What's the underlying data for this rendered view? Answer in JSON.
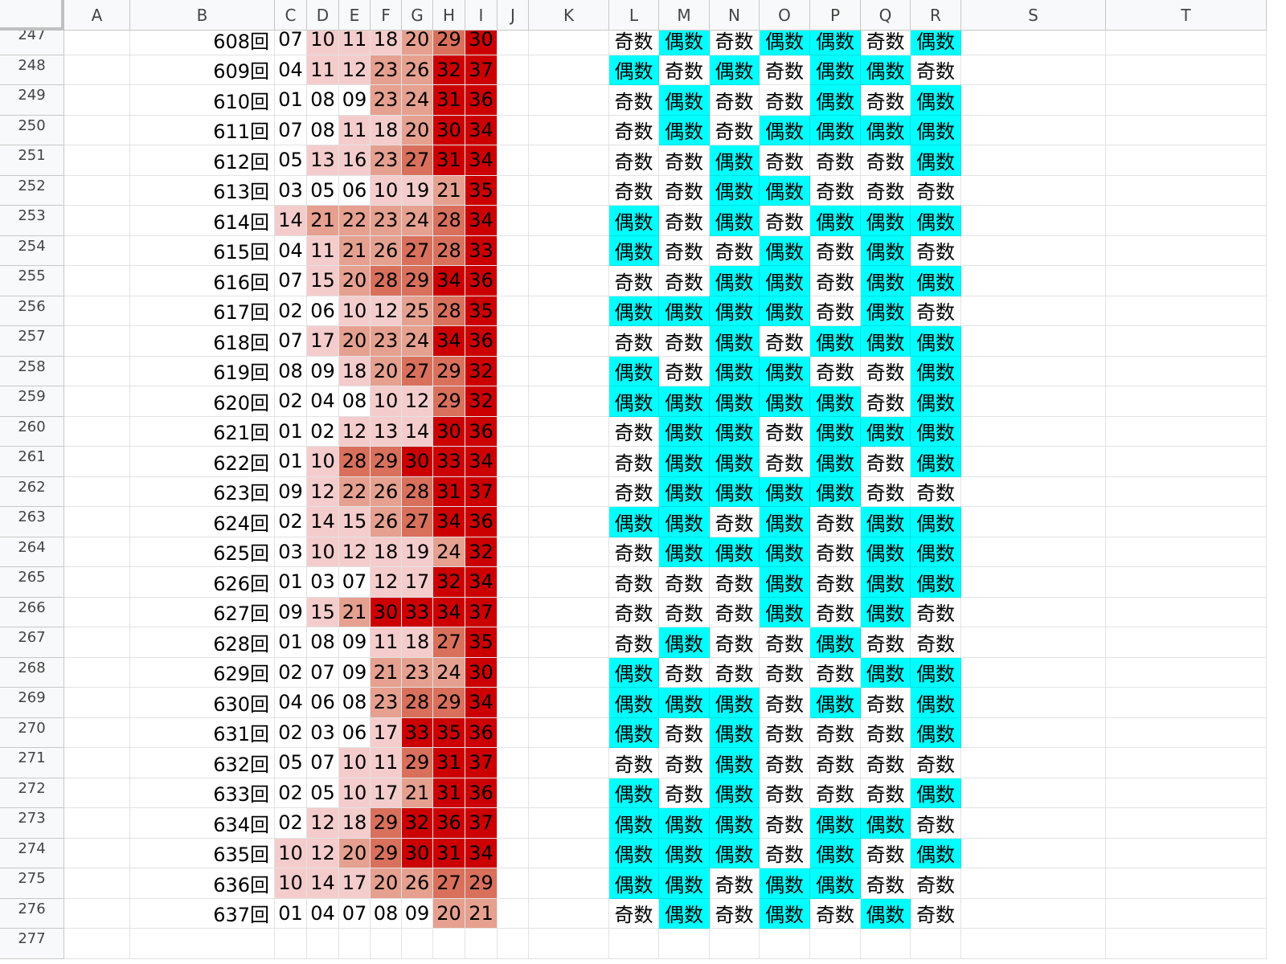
{
  "sheet": {
    "columns": [
      "A",
      "B",
      "C",
      "D",
      "E",
      "F",
      "G",
      "H",
      "I",
      "J",
      "K",
      "L",
      "M",
      "N",
      "O",
      "P",
      "Q",
      "R",
      "S",
      "T"
    ],
    "rows": [
      {
        "row": "247",
        "draw": "608回",
        "nums": [
          "07",
          "10",
          "11",
          "18",
          "20",
          "29",
          "30"
        ],
        "parity": [
          "奇数",
          "偶数",
          "奇数",
          "偶数",
          "偶数",
          "奇数",
          "偶数"
        ]
      },
      {
        "row": "248",
        "draw": "609回",
        "nums": [
          "04",
          "11",
          "12",
          "23",
          "26",
          "32",
          "37"
        ],
        "parity": [
          "偶数",
          "奇数",
          "偶数",
          "奇数",
          "偶数",
          "偶数",
          "奇数"
        ]
      },
      {
        "row": "249",
        "draw": "610回",
        "nums": [
          "01",
          "08",
          "09",
          "23",
          "24",
          "31",
          "36"
        ],
        "parity": [
          "奇数",
          "偶数",
          "奇数",
          "奇数",
          "偶数",
          "奇数",
          "偶数"
        ]
      },
      {
        "row": "250",
        "draw": "611回",
        "nums": [
          "07",
          "08",
          "11",
          "18",
          "20",
          "30",
          "34"
        ],
        "parity": [
          "奇数",
          "偶数",
          "奇数",
          "偶数",
          "偶数",
          "偶数",
          "偶数"
        ]
      },
      {
        "row": "251",
        "draw": "612回",
        "nums": [
          "05",
          "13",
          "16",
          "23",
          "27",
          "31",
          "34"
        ],
        "parity": [
          "奇数",
          "奇数",
          "偶数",
          "奇数",
          "奇数",
          "奇数",
          "偶数"
        ]
      },
      {
        "row": "252",
        "draw": "613回",
        "nums": [
          "03",
          "05",
          "06",
          "10",
          "19",
          "21",
          "35"
        ],
        "parity": [
          "奇数",
          "奇数",
          "偶数",
          "偶数",
          "奇数",
          "奇数",
          "奇数"
        ]
      },
      {
        "row": "253",
        "draw": "614回",
        "nums": [
          "14",
          "21",
          "22",
          "23",
          "24",
          "28",
          "34"
        ],
        "parity": [
          "偶数",
          "奇数",
          "偶数",
          "奇数",
          "偶数",
          "偶数",
          "偶数"
        ]
      },
      {
        "row": "254",
        "draw": "615回",
        "nums": [
          "04",
          "11",
          "21",
          "26",
          "27",
          "28",
          "33"
        ],
        "parity": [
          "偶数",
          "奇数",
          "奇数",
          "偶数",
          "奇数",
          "偶数",
          "奇数"
        ]
      },
      {
        "row": "255",
        "draw": "616回",
        "nums": [
          "07",
          "15",
          "20",
          "28",
          "29",
          "34",
          "36"
        ],
        "parity": [
          "奇数",
          "奇数",
          "偶数",
          "偶数",
          "奇数",
          "偶数",
          "偶数"
        ]
      },
      {
        "row": "256",
        "draw": "617回",
        "nums": [
          "02",
          "06",
          "10",
          "12",
          "25",
          "28",
          "35"
        ],
        "parity": [
          "偶数",
          "偶数",
          "偶数",
          "偶数",
          "奇数",
          "偶数",
          "奇数"
        ]
      },
      {
        "row": "257",
        "draw": "618回",
        "nums": [
          "07",
          "17",
          "20",
          "23",
          "24",
          "34",
          "36"
        ],
        "parity": [
          "奇数",
          "奇数",
          "偶数",
          "奇数",
          "偶数",
          "偶数",
          "偶数"
        ]
      },
      {
        "row": "258",
        "draw": "619回",
        "nums": [
          "08",
          "09",
          "18",
          "20",
          "27",
          "29",
          "32"
        ],
        "parity": [
          "偶数",
          "奇数",
          "偶数",
          "偶数",
          "奇数",
          "奇数",
          "偶数"
        ]
      },
      {
        "row": "259",
        "draw": "620回",
        "nums": [
          "02",
          "04",
          "08",
          "10",
          "12",
          "29",
          "32"
        ],
        "parity": [
          "偶数",
          "偶数",
          "偶数",
          "偶数",
          "偶数",
          "奇数",
          "偶数"
        ]
      },
      {
        "row": "260",
        "draw": "621回",
        "nums": [
          "01",
          "02",
          "12",
          "13",
          "14",
          "30",
          "36"
        ],
        "parity": [
          "奇数",
          "偶数",
          "偶数",
          "奇数",
          "偶数",
          "偶数",
          "偶数"
        ]
      },
      {
        "row": "261",
        "draw": "622回",
        "nums": [
          "01",
          "10",
          "28",
          "29",
          "30",
          "33",
          "34"
        ],
        "parity": [
          "奇数",
          "偶数",
          "偶数",
          "奇数",
          "偶数",
          "奇数",
          "偶数"
        ]
      },
      {
        "row": "262",
        "draw": "623回",
        "nums": [
          "09",
          "12",
          "22",
          "26",
          "28",
          "31",
          "37"
        ],
        "parity": [
          "奇数",
          "偶数",
          "偶数",
          "偶数",
          "偶数",
          "奇数",
          "奇数"
        ]
      },
      {
        "row": "263",
        "draw": "624回",
        "nums": [
          "02",
          "14",
          "15",
          "26",
          "27",
          "34",
          "36"
        ],
        "parity": [
          "偶数",
          "偶数",
          "奇数",
          "偶数",
          "奇数",
          "偶数",
          "偶数"
        ]
      },
      {
        "row": "264",
        "draw": "625回",
        "nums": [
          "03",
          "10",
          "12",
          "18",
          "19",
          "24",
          "32"
        ],
        "parity": [
          "奇数",
          "偶数",
          "偶数",
          "偶数",
          "奇数",
          "偶数",
          "偶数"
        ]
      },
      {
        "row": "265",
        "draw": "626回",
        "nums": [
          "01",
          "03",
          "07",
          "12",
          "17",
          "32",
          "34"
        ],
        "parity": [
          "奇数",
          "奇数",
          "奇数",
          "偶数",
          "奇数",
          "偶数",
          "偶数"
        ]
      },
      {
        "row": "266",
        "draw": "627回",
        "nums": [
          "09",
          "15",
          "21",
          "30",
          "33",
          "34",
          "37"
        ],
        "parity": [
          "奇数",
          "奇数",
          "奇数",
          "偶数",
          "奇数",
          "偶数",
          "奇数"
        ]
      },
      {
        "row": "267",
        "draw": "628回",
        "nums": [
          "01",
          "08",
          "09",
          "11",
          "18",
          "27",
          "35"
        ],
        "parity": [
          "奇数",
          "偶数",
          "奇数",
          "奇数",
          "偶数",
          "奇数",
          "奇数"
        ]
      },
      {
        "row": "268",
        "draw": "629回",
        "nums": [
          "02",
          "07",
          "09",
          "21",
          "23",
          "24",
          "30"
        ],
        "parity": [
          "偶数",
          "奇数",
          "奇数",
          "奇数",
          "奇数",
          "偶数",
          "偶数"
        ]
      },
      {
        "row": "269",
        "draw": "630回",
        "nums": [
          "04",
          "06",
          "08",
          "23",
          "28",
          "29",
          "34"
        ],
        "parity": [
          "偶数",
          "偶数",
          "偶数",
          "奇数",
          "偶数",
          "奇数",
          "偶数"
        ]
      },
      {
        "row": "270",
        "draw": "631回",
        "nums": [
          "02",
          "03",
          "06",
          "17",
          "33",
          "35",
          "36"
        ],
        "parity": [
          "偶数",
          "奇数",
          "偶数",
          "奇数",
          "奇数",
          "奇数",
          "偶数"
        ]
      },
      {
        "row": "271",
        "draw": "632回",
        "nums": [
          "05",
          "07",
          "10",
          "11",
          "29",
          "31",
          "37"
        ],
        "parity": [
          "奇数",
          "奇数",
          "偶数",
          "奇数",
          "奇数",
          "奇数",
          "奇数"
        ]
      },
      {
        "row": "272",
        "draw": "633回",
        "nums": [
          "02",
          "05",
          "10",
          "17",
          "21",
          "31",
          "36"
        ],
        "parity": [
          "偶数",
          "奇数",
          "偶数",
          "奇数",
          "奇数",
          "奇数",
          "偶数"
        ]
      },
      {
        "row": "273",
        "draw": "634回",
        "nums": [
          "02",
          "12",
          "18",
          "29",
          "32",
          "36",
          "37"
        ],
        "parity": [
          "偶数",
          "偶数",
          "偶数",
          "奇数",
          "偶数",
          "偶数",
          "奇数"
        ]
      },
      {
        "row": "274",
        "draw": "635回",
        "nums": [
          "10",
          "12",
          "20",
          "29",
          "30",
          "31",
          "34"
        ],
        "parity": [
          "偶数",
          "偶数",
          "偶数",
          "奇数",
          "偶数",
          "奇数",
          "偶数"
        ]
      },
      {
        "row": "275",
        "draw": "636回",
        "nums": [
          "10",
          "14",
          "17",
          "20",
          "26",
          "27",
          "29"
        ],
        "parity": [
          "偶数",
          "偶数",
          "奇数",
          "偶数",
          "偶数",
          "奇数",
          "奇数"
        ]
      },
      {
        "row": "276",
        "draw": "637回",
        "nums": [
          "01",
          "04",
          "07",
          "08",
          "09",
          "20",
          "21"
        ],
        "parity": [
          "奇数",
          "偶数",
          "奇数",
          "偶数",
          "奇数",
          "偶数",
          "奇数"
        ]
      },
      {
        "row": "277",
        "draw": "",
        "nums": [
          "",
          "",
          "",
          "",
          "",
          "",
          ""
        ],
        "parity": [
          "",
          "",
          "",
          "",
          "",
          "",
          ""
        ]
      }
    ]
  },
  "colors": {
    "even_fill": "#00ffff",
    "odd_fill": "#ffffff",
    "heat_scale": [
      "#ffffff",
      "#f4cccc",
      "#e6a08f",
      "#d9705c",
      "#cc0000"
    ],
    "grid": "#e2e2e2",
    "header_bg": "#f8f9fa"
  },
  "legend": {
    "even_label": "偶数"
  }
}
